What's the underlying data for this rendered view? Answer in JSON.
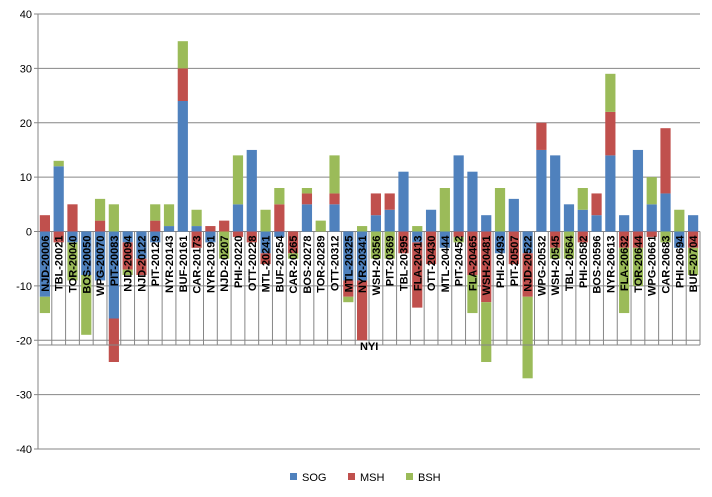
{
  "chart_data": {
    "type": "bar",
    "stacked": true,
    "title": "",
    "xlabel": "",
    "ylabel": "",
    "ylim": [
      -40,
      40
    ],
    "yticks": [
      40,
      30,
      20,
      10,
      0,
      -10,
      -20,
      -30,
      -40
    ],
    "grid": true,
    "legend_position": "bottom",
    "annotation": "NYI",
    "categories": [
      "NJD-20006",
      "TBL-20021",
      "TOR-20040",
      "BOS-20050",
      "WPG-20070",
      "PIT-20083",
      "NJD-20094",
      "NJD-20122",
      "PIT-20129",
      "NYR-20143",
      "BUF-20161",
      "CAR-20173",
      "NYR-20191",
      "NJD-20207",
      "PHI-20220",
      "OTT-20228",
      "MTL-20241",
      "BUF-20254",
      "CAR-20265",
      "BOS-20278",
      "TOR-20289",
      "OTT-20312",
      "MTL-20325",
      "NYR-20341",
      "WSH-20356",
      "PIT-20369",
      "TBL-20395",
      "FLA-20413",
      "OTT-20430",
      "MTL-20444",
      "PIT-20452",
      "FLA-20465",
      "WSH-20481",
      "PHI-20493",
      "PIT-20507",
      "NJD-20522",
      "WPG-20532",
      "WSH-20545",
      "TBL-20564",
      "PHI-20582",
      "BOS-20596",
      "NYR-20613",
      "FLA-20632",
      "TOR-20644",
      "WPG-20661",
      "CAR-20683",
      "PHI-20694",
      "BUF-20704"
    ],
    "series": [
      {
        "name": "SOG",
        "color": "#4f81bd",
        "values": [
          -12,
          12,
          -2,
          -8,
          -9,
          -16,
          -2,
          -5,
          -2,
          1,
          24,
          1,
          -2,
          0,
          5,
          15,
          -4,
          -1,
          0,
          5,
          0,
          5,
          -9,
          -9,
          3,
          4,
          11,
          -2,
          4,
          -3,
          14,
          11,
          3,
          -4,
          6,
          -4,
          15,
          14,
          5,
          4,
          3,
          14,
          3,
          15,
          5,
          7,
          -3,
          3
        ]
      },
      {
        "name": "MSH",
        "color": "#c0504d",
        "values": [
          3,
          -2,
          5,
          0,
          2,
          -8,
          -5,
          -3,
          2,
          0,
          6,
          -3,
          1,
          2,
          -1,
          -2,
          -2,
          5,
          -4,
          2,
          0,
          2,
          -3,
          -11,
          4,
          3,
          -4,
          -12,
          -6,
          0,
          -1,
          -8,
          -13,
          0,
          -6,
          -8,
          5,
          -3,
          0,
          -2,
          4,
          8,
          -3,
          -3,
          -1,
          12,
          0,
          -3
        ]
      },
      {
        "name": "BSH",
        "color": "#9bbb59",
        "values": [
          -3,
          1,
          -7,
          -11,
          4,
          5,
          -1,
          0,
          3,
          4,
          5,
          3,
          0,
          -5,
          9,
          0,
          4,
          3,
          -1,
          1,
          2,
          7,
          -1,
          1,
          -5,
          -5,
          0,
          1,
          0,
          8,
          -1,
          -7,
          -11,
          8,
          0,
          -15,
          0,
          -2,
          -5,
          4,
          0,
          7,
          -12,
          -7,
          5,
          -2,
          4,
          -5
        ]
      }
    ]
  }
}
